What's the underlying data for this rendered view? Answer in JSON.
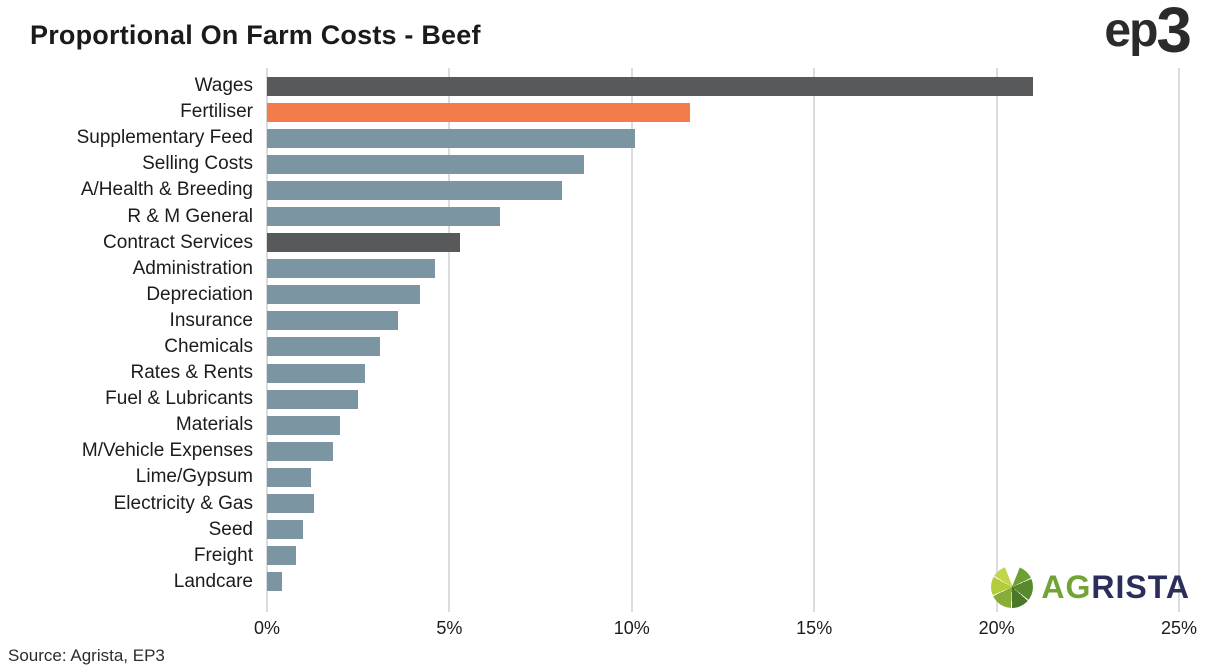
{
  "logos": {
    "ep3_prefix": "ep",
    "ep3_digit": "3",
    "agrista_green": "AG",
    "agrista_navy": "RISTA"
  },
  "footer": {
    "source": "Source: Agrista, EP3"
  },
  "colors": {
    "dark_bar": "#58595B",
    "highlight_bar": "#F47C4A",
    "default_bar": "#7C95A3",
    "gridline": "#DCDCDC",
    "title_text": "#1B1B1B",
    "agrista_green": "#71A434",
    "agrista_navy": "#2B2D5A",
    "ep3_text": "#2B2B2B"
  },
  "chart_data": {
    "type": "bar",
    "orientation": "horizontal",
    "title": "Proportional On Farm Costs - Beef",
    "xlabel": "",
    "ylabel": "",
    "unit": "%",
    "xlim": [
      0,
      25
    ],
    "x_ticks": [
      "0%",
      "5%",
      "10%",
      "15%",
      "20%",
      "25%"
    ],
    "grid": true,
    "legend": "none",
    "categories": [
      "Wages",
      "Fertiliser",
      "Supplementary Feed",
      "Selling Costs",
      "A/Health & Breeding",
      "R & M General",
      "Contract Services",
      "Administration",
      "Depreciation",
      "Insurance",
      "Chemicals",
      "Rates & Rents",
      "Fuel & Lubricants",
      "Materials",
      "M/Vehicle Expenses",
      "Lime/Gypsum",
      "Electricity & Gas",
      "Seed",
      "Freight",
      "Landcare"
    ],
    "values": [
      21.0,
      11.6,
      10.1,
      8.7,
      8.1,
      6.4,
      5.3,
      4.6,
      4.2,
      3.6,
      3.1,
      2.7,
      2.5,
      2.0,
      1.8,
      1.2,
      1.3,
      1.0,
      0.8,
      0.4
    ],
    "bar_colors": [
      "#58595B",
      "#F47C4A",
      "#7C95A3",
      "#7C95A3",
      "#7C95A3",
      "#7C95A3",
      "#58595B",
      "#7C95A3",
      "#7C95A3",
      "#7C95A3",
      "#7C95A3",
      "#7C95A3",
      "#7C95A3",
      "#7C95A3",
      "#7C95A3",
      "#7C95A3",
      "#7C95A3",
      "#7C95A3",
      "#7C95A3",
      "#7C95A3"
    ]
  }
}
